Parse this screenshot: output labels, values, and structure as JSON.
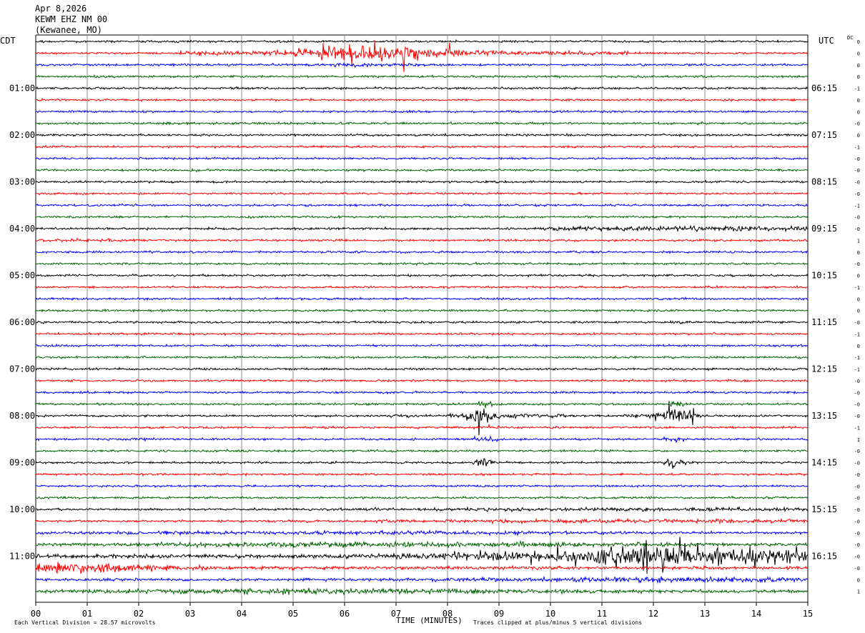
{
  "header": {
    "date": "Apr 8,2026",
    "station": "KEWM EHZ NM 00",
    "location": "(Kewanee, MO)"
  },
  "left_tz": "CDT",
  "right_tz": "UTC",
  "dc_label": "DC",
  "footer": {
    "scale": "Each Vertical Division =   28.57 microvolts",
    "clip": "Traces clipped at plus/minus 5 vertical divisions"
  },
  "chart_data": {
    "type": "line",
    "xlabel": "TIME (MINUTES)",
    "x_ticks": [
      "00",
      "01",
      "02",
      "03",
      "04",
      "05",
      "06",
      "07",
      "08",
      "09",
      "10",
      "11",
      "12",
      "13",
      "14",
      "15"
    ],
    "xlim": [
      0,
      15
    ],
    "grid": true,
    "trace_colors": [
      "#000000",
      "#ff0000",
      "#0000ff",
      "#006400"
    ],
    "trace_minutes": 15,
    "trace_count": 48,
    "left_labels": [
      {
        "row": 4,
        "text": "01:00"
      },
      {
        "row": 8,
        "text": "02:00"
      },
      {
        "row": 12,
        "text": "03:00"
      },
      {
        "row": 16,
        "text": "04:00"
      },
      {
        "row": 20,
        "text": "05:00"
      },
      {
        "row": 24,
        "text": "06:00"
      },
      {
        "row": 28,
        "text": "07:00"
      },
      {
        "row": 32,
        "text": "08:00"
      },
      {
        "row": 36,
        "text": "09:00"
      },
      {
        "row": 40,
        "text": "10:00"
      },
      {
        "row": 44,
        "text": "11:00"
      }
    ],
    "right_labels": [
      {
        "row": 4,
        "text": "06:15"
      },
      {
        "row": 8,
        "text": "07:15"
      },
      {
        "row": 12,
        "text": "08:15"
      },
      {
        "row": 16,
        "text": "09:15"
      },
      {
        "row": 20,
        "text": "10:15"
      },
      {
        "row": 24,
        "text": "11:15"
      },
      {
        "row": 28,
        "text": "12:15"
      },
      {
        "row": 32,
        "text": "13:15"
      },
      {
        "row": 36,
        "text": "14:15"
      },
      {
        "row": 40,
        "text": "15:15"
      },
      {
        "row": 44,
        "text": "16:15"
      }
    ],
    "dc_offsets": [
      "0",
      "0",
      "0",
      "0",
      "-1",
      "0",
      "0",
      "-0",
      "0",
      "-1",
      "-0",
      "-0",
      "-0",
      "-0",
      "-1",
      "-0",
      "-0",
      "1",
      "0",
      "-0",
      "0",
      "-1",
      "0",
      "0",
      "-0",
      "-1",
      "0",
      "-1",
      "-1",
      "-0",
      "-0",
      "-0",
      "-0",
      "-1",
      "1",
      "-0",
      "-0",
      "-0",
      "-0",
      "-0",
      "-0",
      "-0",
      "-0",
      "-0",
      "-0",
      "-0",
      "0",
      "1"
    ],
    "events": [
      {
        "row": 1,
        "start": 2.8,
        "end": 11.5,
        "amp": 6.0,
        "peak": 6.6,
        "width": 1.5,
        "spiky": true
      },
      {
        "row": 2,
        "start": 4.8,
        "end": 8.2,
        "amp": 0.7,
        "peak": 6.4,
        "width": 0.8
      },
      {
        "row": 16,
        "start": 9.8,
        "end": 15.0,
        "amp": 1.4,
        "peak": 12.5,
        "width": 3.0
      },
      {
        "row": 17,
        "start": 0.0,
        "end": 2.2,
        "amp": 0.7,
        "peak": 0.8,
        "width": 1.0
      },
      {
        "row": 31,
        "start": 8.6,
        "end": 8.9,
        "amp": 2.2,
        "peak": 8.75,
        "width": 0.2
      },
      {
        "row": 31,
        "start": 12.3,
        "end": 12.6,
        "amp": 2.2,
        "peak": 12.45,
        "width": 0.2
      },
      {
        "row": 32,
        "start": 6.9,
        "end": 7.5,
        "amp": 1.0,
        "peak": 7.1,
        "width": 0.3
      },
      {
        "row": 32,
        "start": 8.0,
        "end": 10.3,
        "amp": 6.0,
        "peak": 8.7,
        "width": 0.25,
        "spiky": true
      },
      {
        "row": 32,
        "start": 11.4,
        "end": 13.0,
        "amp": 6.0,
        "peak": 12.4,
        "width": 0.3,
        "spiky": true
      },
      {
        "row": 33,
        "start": 8.5,
        "end": 9.0,
        "amp": 1.2,
        "peak": 8.7,
        "width": 0.3
      },
      {
        "row": 34,
        "start": 1.8,
        "end": 3.0,
        "amp": 0.6,
        "peak": 2.0,
        "width": 0.5
      },
      {
        "row": 34,
        "start": 8.5,
        "end": 9.0,
        "amp": 1.5,
        "peak": 8.7,
        "width": 0.3
      },
      {
        "row": 34,
        "start": 12.2,
        "end": 12.7,
        "amp": 1.5,
        "peak": 12.4,
        "width": 0.3
      },
      {
        "row": 36,
        "start": 8.5,
        "end": 8.9,
        "amp": 3.0,
        "peak": 8.7,
        "width": 0.2
      },
      {
        "row": 36,
        "start": 12.2,
        "end": 12.7,
        "amp": 3.0,
        "peak": 12.4,
        "width": 0.2
      },
      {
        "row": 40,
        "start": 0.0,
        "end": 15.0,
        "amp": 0.7,
        "peak": 12.5,
        "width": 6.0
      },
      {
        "row": 41,
        "start": 0.0,
        "end": 15.0,
        "amp": 1.0,
        "peak": 12.5,
        "width": 6.0
      },
      {
        "row": 42,
        "start": 0.0,
        "end": 15.0,
        "amp": 1.0,
        "peak": 6.5,
        "width": 6.0
      },
      {
        "row": 43,
        "start": 0.0,
        "end": 15.0,
        "amp": 1.4,
        "peak": 7.0,
        "width": 6.0
      },
      {
        "row": 44,
        "start": 0.0,
        "end": 15.0,
        "amp": 6.0,
        "peak": 12.5,
        "width": 3.5,
        "spiky": true
      },
      {
        "row": 45,
        "start": 0.0,
        "end": 15.0,
        "amp": 3.5,
        "peak": 0.4,
        "width": 2.2
      },
      {
        "row": 46,
        "start": 0.0,
        "end": 15.0,
        "amp": 1.5,
        "peak": 12.5,
        "width": 4.0
      },
      {
        "row": 47,
        "start": 0.0,
        "end": 15.0,
        "amp": 1.5,
        "peak": 6.0,
        "width": 5.0
      }
    ]
  }
}
